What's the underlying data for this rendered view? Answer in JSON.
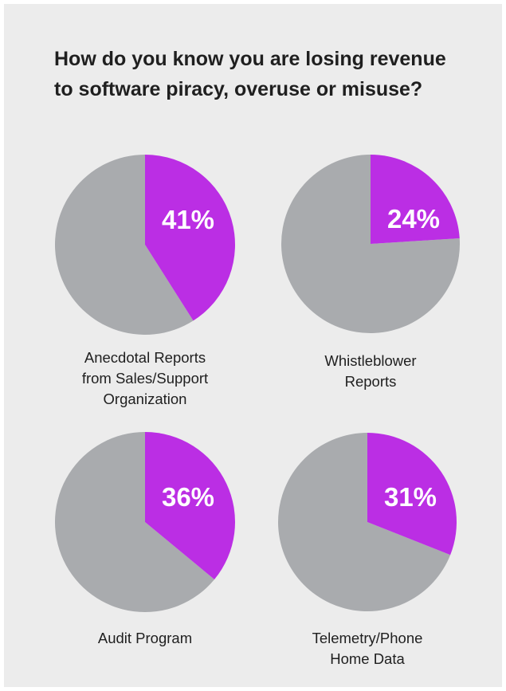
{
  "colors": {
    "panel_background": "#ececec",
    "highlight": "#bb2ee4",
    "remainder": "#a9abae",
    "percent_text": "#ffffff",
    "title_text": "#1f1f1f"
  },
  "title": "How do you know you are losing revenue to software piracy, overuse or misuse?",
  "chart_data": [
    {
      "type": "pie",
      "label": "Anecdotal Reports from Sales/Support Organization",
      "value": 41,
      "value_label": "41%"
    },
    {
      "type": "pie",
      "label": "Whistleblower Reports",
      "value": 24,
      "value_label": "24%"
    },
    {
      "type": "pie",
      "label": "Audit Program",
      "value": 36,
      "value_label": "36%"
    },
    {
      "type": "pie",
      "label": "Telemetry/Phone Home Data",
      "value": 31,
      "value_label": "31%"
    }
  ]
}
